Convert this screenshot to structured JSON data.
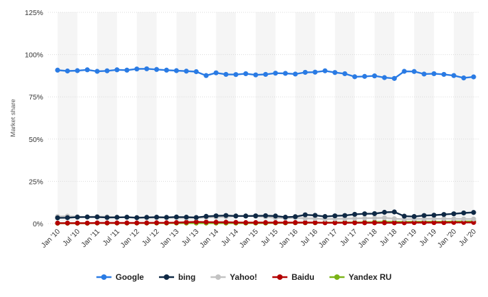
{
  "chart_data": {
    "type": "line",
    "title": "",
    "xlabel": "",
    "ylabel": "Market share",
    "ylim": [
      0,
      125
    ],
    "y_ticks": [
      0,
      25,
      50,
      75,
      100,
      125
    ],
    "y_tick_labels": [
      "0%",
      "25%",
      "50%",
      "75%",
      "100%",
      "125%"
    ],
    "x_tick_labels": [
      "Jan '10",
      "Jul '10",
      "Jan '11",
      "Jul '11",
      "Jan '12",
      "Jul '12",
      "Jan '13",
      "Jul '13",
      "Jan '14",
      "Jul '14",
      "Jan '15",
      "Jul '15",
      "Jan '16",
      "Jul '16",
      "Jan '17",
      "Jul '17",
      "Jan '18",
      "Jul '18",
      "Jan '19",
      "Jul '19",
      "Jan '20",
      "Jul '20"
    ],
    "grid": true,
    "alternating_column_bands": true,
    "legend_position": "bottom-center",
    "series": [
      {
        "name": "Google",
        "color": "#2a7be4",
        "values": [
          90.8,
          90.3,
          90.5,
          91.0,
          90.1,
          90.4,
          91.0,
          90.8,
          91.5,
          91.6,
          91.2,
          90.8,
          90.5,
          90.2,
          89.9,
          87.6,
          89.2,
          88.3,
          88.2,
          88.7,
          88.0,
          88.3,
          89.0,
          88.9,
          88.5,
          89.5,
          89.6,
          90.4,
          89.4,
          88.7,
          86.9,
          87.1,
          87.4,
          86.4,
          85.9,
          90.1,
          90.0,
          88.5,
          88.7,
          88.3,
          87.6,
          86.2,
          86.8
        ]
      },
      {
        "name": "bing",
        "color": "#0f2945",
        "values": [
          3.4,
          3.5,
          3.8,
          3.9,
          3.9,
          3.6,
          3.7,
          3.8,
          3.5,
          3.7,
          3.8,
          3.7,
          3.9,
          3.8,
          3.6,
          4.3,
          4.6,
          4.8,
          4.5,
          4.5,
          4.6,
          4.7,
          4.5,
          3.8,
          4.1,
          5.2,
          4.9,
          4.2,
          4.6,
          4.8,
          5.5,
          5.8,
          5.9,
          6.7,
          6.9,
          4.4,
          4.2,
          4.8,
          5.0,
          5.4,
          5.8,
          6.3,
          6.6
        ]
      },
      {
        "name": "Yahoo!",
        "color": "#c3c3c3",
        "values": [
          4.2,
          4.4,
          4.1,
          4.0,
          4.2,
          4.0,
          3.8,
          3.7,
          3.6,
          3.5,
          3.5,
          3.4,
          3.5,
          3.4,
          3.4,
          3.6,
          3.8,
          4.1,
          4.5,
          4.5,
          4.3,
          4.0,
          3.4,
          3.3,
          3.5,
          3.1,
          3.0,
          2.6,
          2.8,
          2.9,
          3.1,
          3.2,
          3.3,
          3.4,
          2.9,
          2.6,
          2.7,
          2.8,
          2.9,
          2.9,
          2.8,
          2.7,
          2.7
        ]
      },
      {
        "name": "Baidu",
        "color": "#b30000",
        "values": [
          0.3,
          0.3,
          0.3,
          0.3,
          0.4,
          0.4,
          0.4,
          0.4,
          0.4,
          0.4,
          0.5,
          0.5,
          0.6,
          0.8,
          1.0,
          0.9,
          0.8,
          0.8,
          0.7,
          0.6,
          0.6,
          0.6,
          0.6,
          0.6,
          0.6,
          0.6,
          0.6,
          0.5,
          0.5,
          0.5,
          0.5,
          0.5,
          0.5,
          0.5,
          0.5,
          0.5,
          0.6,
          0.6,
          0.6,
          0.6,
          0.7,
          0.7,
          0.7
        ]
      },
      {
        "name": "Yandex RU",
        "color": "#7ab317",
        "values": [
          0.2,
          0.2,
          0.2,
          0.2,
          0.3,
          0.3,
          0.3,
          0.3,
          0.3,
          0.3,
          0.3,
          0.3,
          0.3,
          0.3,
          0.3,
          0.3,
          0.3,
          0.3,
          0.3,
          0.3,
          0.3,
          0.3,
          0.4,
          0.4,
          0.5,
          0.5,
          0.5,
          0.6,
          0.6,
          0.7,
          0.7,
          0.8,
          0.9,
          1.0,
          1.0,
          1.0,
          1.1,
          1.1,
          1.1,
          1.1,
          1.2,
          1.2,
          1.3
        ]
      }
    ]
  }
}
